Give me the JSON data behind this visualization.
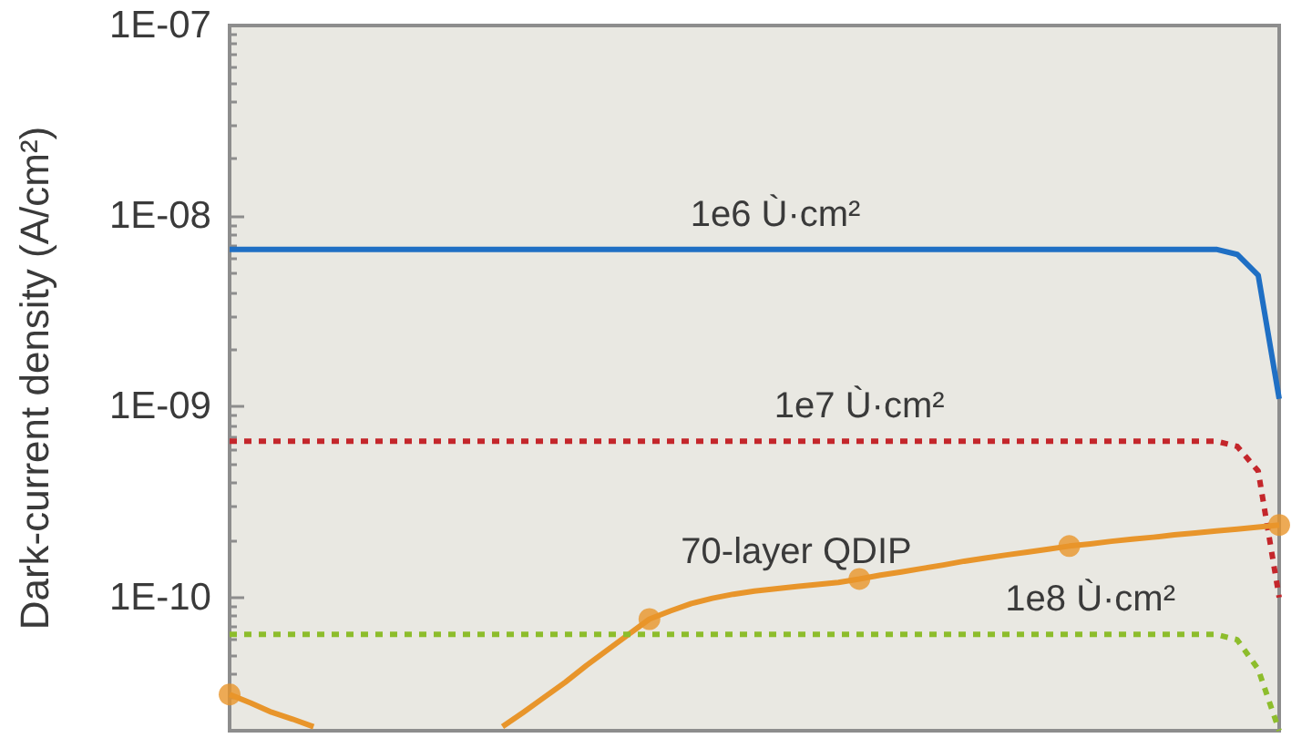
{
  "chart_data": {
    "type": "line",
    "ylabel": "Dark-current density (A/cm²)",
    "log": true,
    "tick_labels": "y",
    "categories": [
      null,
      null,
      null,
      null,
      null,
      null,
      null,
      null,
      null,
      null,
      null,
      null,
      null,
      null,
      null,
      null,
      null,
      null,
      null,
      null,
      null,
      null,
      null,
      null,
      null,
      null,
      null,
      null,
      null,
      null,
      null,
      null,
      null,
      null,
      null,
      null,
      null,
      null,
      null,
      null,
      null,
      null,
      null,
      null,
      null,
      null,
      null,
      null,
      null,
      null,
      null
    ],
    "ylim": [
      2e-11,
      1e-07
    ],
    "yticks": [
      {
        "value": 1e-10,
        "label": "1E-10"
      },
      {
        "value": 1e-09,
        "label": "1E-09"
      },
      {
        "value": 1e-08,
        "label": "1E-08"
      },
      {
        "value": 1e-07,
        "label": "1E-07"
      },
      {
        "value": 2e-11,
        "label": null
      },
      {
        "value": 3e-11,
        "label": null
      },
      {
        "value": 4e-11,
        "label": null
      },
      {
        "value": 5e-11,
        "label": null
      },
      {
        "value": 6e-11,
        "label": null
      },
      {
        "value": 7e-11,
        "label": null
      },
      {
        "value": 8e-11,
        "label": null
      },
      {
        "value": 9e-11,
        "label": null
      },
      {
        "value": 2e-10,
        "label": null
      },
      {
        "value": 3e-10,
        "label": null
      },
      {
        "value": 4e-10,
        "label": null
      },
      {
        "value": 5e-10,
        "label": null
      },
      {
        "value": 6e-10,
        "label": null
      },
      {
        "value": 7e-10,
        "label": null
      },
      {
        "value": 8e-10,
        "label": null
      },
      {
        "value": 9e-10,
        "label": null
      },
      {
        "value": 2e-09,
        "label": null
      },
      {
        "value": 3e-09,
        "label": null
      },
      {
        "value": 4e-09,
        "label": null
      },
      {
        "value": 5e-09,
        "label": null
      },
      {
        "value": 6e-09,
        "label": null
      },
      {
        "value": 7e-09,
        "label": null
      },
      {
        "value": 8e-09,
        "label": null
      },
      {
        "value": 9e-09,
        "label": null
      },
      {
        "value": 2e-08,
        "label": null
      },
      {
        "value": 3e-08,
        "label": null
      },
      {
        "value": 4e-08,
        "label": null
      },
      {
        "value": 5e-08,
        "label": null
      },
      {
        "value": 6e-08,
        "label": null
      },
      {
        "value": 7e-08,
        "label": null
      },
      {
        "value": 8e-08,
        "label": null
      },
      {
        "value": 9e-08,
        "label": null
      }
    ],
    "series": [
      {
        "name": "1e6 Ù·cm²",
        "color": "#1f6fc4",
        "line_style": "solid",
        "values": [
          6.7e-09,
          6.7e-09,
          6.7e-09,
          6.7e-09,
          6.7e-09,
          6.7e-09,
          6.7e-09,
          6.7e-09,
          6.7e-09,
          6.7e-09,
          6.7e-09,
          6.7e-09,
          6.7e-09,
          6.7e-09,
          6.7e-09,
          6.7e-09,
          6.7e-09,
          6.7e-09,
          6.7e-09,
          6.7e-09,
          6.7e-09,
          6.7e-09,
          6.7e-09,
          6.7e-09,
          6.7e-09,
          6.7e-09,
          6.7e-09,
          6.7e-09,
          6.7e-09,
          6.7e-09,
          6.7e-09,
          6.7e-09,
          6.7e-09,
          6.7e-09,
          6.7e-09,
          6.7e-09,
          6.7e-09,
          6.7e-09,
          6.7e-09,
          6.7e-09,
          6.7e-09,
          6.7e-09,
          6.7e-09,
          6.7e-09,
          6.7e-09,
          6.7e-09,
          6.7e-09,
          6.7e-09,
          6.3e-09,
          4.9e-09,
          1.1e-09
        ]
      },
      {
        "name": "1e7 Ù·cm²",
        "color": "#c4262b",
        "line_style": "dotted",
        "values": [
          6.6e-10,
          6.6e-10,
          6.6e-10,
          6.6e-10,
          6.6e-10,
          6.6e-10,
          6.6e-10,
          6.6e-10,
          6.6e-10,
          6.6e-10,
          6.6e-10,
          6.6e-10,
          6.6e-10,
          6.6e-10,
          6.6e-10,
          6.6e-10,
          6.6e-10,
          6.6e-10,
          6.6e-10,
          6.6e-10,
          6.6e-10,
          6.6e-10,
          6.6e-10,
          6.6e-10,
          6.6e-10,
          6.6e-10,
          6.6e-10,
          6.6e-10,
          6.6e-10,
          6.6e-10,
          6.6e-10,
          6.6e-10,
          6.6e-10,
          6.6e-10,
          6.6e-10,
          6.6e-10,
          6.6e-10,
          6.6e-10,
          6.6e-10,
          6.6e-10,
          6.6e-10,
          6.6e-10,
          6.6e-10,
          6.6e-10,
          6.6e-10,
          6.6e-10,
          6.6e-10,
          6.6e-10,
          6.2e-10,
          4.6e-10,
          1e-10
        ]
      },
      {
        "name": "70-layer QDIP",
        "color": "#e8952b",
        "line_style": "solid",
        "values": [
          3.1e-11,
          2.8e-11,
          2.5e-11,
          2.3e-11,
          2.1e-11,
          null,
          null,
          null,
          null,
          null,
          null,
          null,
          null,
          2.1e-11,
          2.5e-11,
          3e-11,
          3.6e-11,
          4.4e-11,
          5.3e-11,
          6.4e-11,
          7.7e-11,
          8.5e-11,
          9.3e-11,
          9.9e-11,
          1.04e-10,
          1.08e-10,
          1.11e-10,
          1.14e-10,
          1.17e-10,
          1.2e-10,
          1.25e-10,
          1.31e-10,
          1.36e-10,
          1.42e-10,
          1.48e-10,
          1.55e-10,
          1.61e-10,
          1.67e-10,
          1.73e-10,
          1.79e-10,
          1.86e-10,
          1.91e-10,
          1.97e-10,
          2.02e-10,
          2.07e-10,
          2.13e-10,
          2.18e-10,
          2.23e-10,
          2.28e-10,
          2.34e-10,
          2.4e-10
        ]
      },
      {
        "name": "1e8 Ù·cm²",
        "color": "#8dbd2c",
        "line_style": "dotted",
        "values": [
          6.4e-11,
          6.4e-11,
          6.4e-11,
          6.4e-11,
          6.4e-11,
          6.4e-11,
          6.4e-11,
          6.4e-11,
          6.4e-11,
          6.4e-11,
          6.4e-11,
          6.4e-11,
          6.4e-11,
          6.4e-11,
          6.4e-11,
          6.4e-11,
          6.4e-11,
          6.4e-11,
          6.4e-11,
          6.4e-11,
          6.4e-11,
          6.4e-11,
          6.4e-11,
          6.4e-11,
          6.4e-11,
          6.4e-11,
          6.4e-11,
          6.4e-11,
          6.4e-11,
          6.4e-11,
          6.4e-11,
          6.4e-11,
          6.4e-11,
          6.4e-11,
          6.4e-11,
          6.4e-11,
          6.4e-11,
          6.4e-11,
          6.4e-11,
          6.4e-11,
          6.4e-11,
          6.4e-11,
          6.4e-11,
          6.4e-11,
          6.4e-11,
          6.4e-11,
          6.4e-11,
          6.4e-11,
          6e-11,
          4.2e-11,
          2e-11
        ]
      },
      {
        "type": "scatter",
        "color": "#e8952b",
        "marker": "circle",
        "values": [
          3.1e-11,
          null,
          null,
          null,
          null,
          null,
          null,
          null,
          null,
          null,
          null,
          null,
          null,
          null,
          null,
          null,
          null,
          null,
          null,
          null,
          7.7e-11,
          null,
          null,
          null,
          null,
          null,
          null,
          null,
          null,
          null,
          1.25e-10,
          null,
          null,
          null,
          null,
          null,
          null,
          null,
          null,
          null,
          1.86e-10,
          null,
          null,
          null,
          null,
          null,
          null,
          null,
          null,
          null,
          2.4e-10
        ]
      }
    ]
  }
}
